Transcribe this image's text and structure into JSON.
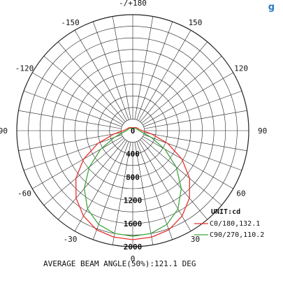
{
  "header": {
    "title_fragment": "g"
  },
  "chart_data": {
    "type": "polar-line",
    "angle_labels": [
      {
        "label": "-/+180",
        "deg": 180
      },
      {
        "label": "150",
        "deg": 150
      },
      {
        "label": "-150",
        "deg": -150
      },
      {
        "label": "120",
        "deg": 120
      },
      {
        "label": "-120",
        "deg": -120
      },
      {
        "label": "90",
        "deg": 90
      },
      {
        "label": "-90",
        "deg": -90
      },
      {
        "label": "60",
        "deg": 60
      },
      {
        "label": "-60",
        "deg": -60
      },
      {
        "label": "30",
        "deg": 30
      },
      {
        "label": "-30",
        "deg": -30
      },
      {
        "label": "0",
        "deg": 0
      }
    ],
    "radial_ticks": [
      "0",
      "400",
      "800",
      "1200",
      "1600",
      "2000"
    ],
    "radial_max": 2000,
    "angle_grid_step_deg": 10,
    "radial_grid_values": [
      200,
      400,
      600,
      800,
      1000,
      1200,
      1400,
      1600,
      1800,
      2000
    ],
    "unit_label": "UNIT:cd",
    "series": [
      {
        "name": "C0/180,132.1",
        "color": "#e8312e",
        "theta_deg": [
          0,
          10,
          20,
          30,
          40,
          50,
          60,
          70,
          80,
          90,
          100,
          110,
          120,
          130,
          140,
          150,
          160,
          170,
          180
        ],
        "intensity": [
          1880,
          1865,
          1820,
          1700,
          1520,
          1280,
          980,
          640,
          330,
          160,
          120,
          100,
          90,
          80,
          70,
          60,
          55,
          50,
          50
        ]
      },
      {
        "name": "C90/270,110.2",
        "color": "#3fa63f",
        "theta_deg": [
          0,
          10,
          20,
          30,
          40,
          50,
          60,
          70,
          80,
          90,
          100,
          110,
          120,
          130,
          140,
          150,
          160,
          170,
          180
        ],
        "intensity": [
          1820,
          1800,
          1720,
          1560,
          1300,
          980,
          640,
          340,
          170,
          110,
          90,
          80,
          70,
          60,
          55,
          50,
          45,
          40,
          40
        ]
      }
    ],
    "footer": "AVERAGE BEAM ANGLE(50%):121.1 DEG",
    "grid": true,
    "legend_position": "bottom-right"
  }
}
